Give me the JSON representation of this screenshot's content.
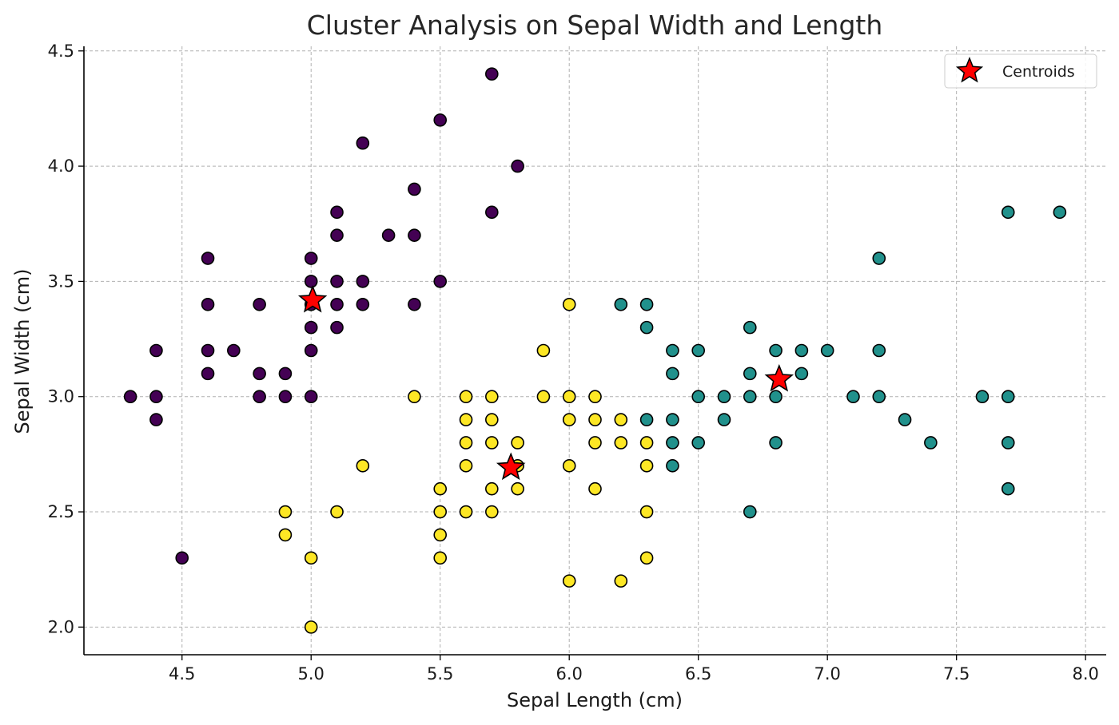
{
  "chart_data": {
    "type": "scatter",
    "title": "Cluster Analysis on Sepal Width and Length",
    "xlabel": "Sepal Length (cm)",
    "ylabel": "Sepal Width (cm)",
    "xlim": [
      4.12,
      8.08
    ],
    "ylim": [
      1.88,
      4.52
    ],
    "x_ticks": [
      "4.5",
      "5.0",
      "5.5",
      "6.0",
      "6.5",
      "7.0",
      "7.5",
      "8.0"
    ],
    "y_ticks": [
      "2.0",
      "2.5",
      "3.0",
      "3.5",
      "4.0",
      "4.5"
    ],
    "grid": true,
    "legend": {
      "entries": [
        "Centroids"
      ],
      "location": "top-right"
    },
    "colors": {
      "cluster_purple": "#440154",
      "cluster_teal": "#21918c",
      "cluster_yellow": "#fde725",
      "centroid": "#ff0000",
      "edge": "#000000"
    },
    "series": [
      {
        "color": "#440154",
        "points": [
          [
            4.3,
            3.0
          ],
          [
            4.4,
            3.2
          ],
          [
            4.4,
            3.0
          ],
          [
            4.4,
            2.9
          ],
          [
            4.5,
            2.3
          ],
          [
            4.6,
            3.6
          ],
          [
            4.6,
            3.4
          ],
          [
            4.6,
            3.2
          ],
          [
            4.6,
            3.1
          ],
          [
            4.7,
            3.2
          ],
          [
            4.8,
            3.4
          ],
          [
            4.8,
            3.1
          ],
          [
            4.8,
            3.0
          ],
          [
            4.9,
            3.1
          ],
          [
            4.9,
            3.0
          ],
          [
            5.0,
            3.6
          ],
          [
            5.0,
            3.5
          ],
          [
            5.0,
            3.4
          ],
          [
            5.0,
            3.3
          ],
          [
            5.0,
            3.2
          ],
          [
            5.0,
            3.0
          ],
          [
            5.1,
            3.8
          ],
          [
            5.1,
            3.7
          ],
          [
            5.1,
            3.5
          ],
          [
            5.1,
            3.4
          ],
          [
            5.1,
            3.3
          ],
          [
            5.2,
            4.1
          ],
          [
            5.2,
            3.5
          ],
          [
            5.2,
            3.4
          ],
          [
            5.3,
            3.7
          ],
          [
            5.4,
            3.9
          ],
          [
            5.4,
            3.7
          ],
          [
            5.4,
            3.4
          ],
          [
            5.5,
            4.2
          ],
          [
            5.5,
            3.5
          ],
          [
            5.7,
            4.4
          ],
          [
            5.7,
            3.8
          ],
          [
            5.8,
            4.0
          ]
        ]
      },
      {
        "color": "#fde725",
        "points": [
          [
            4.9,
            2.5
          ],
          [
            4.9,
            2.4
          ],
          [
            5.0,
            2.3
          ],
          [
            5.0,
            2.0
          ],
          [
            5.1,
            2.5
          ],
          [
            5.2,
            2.7
          ],
          [
            5.4,
            3.0
          ],
          [
            5.5,
            2.6
          ],
          [
            5.5,
            2.5
          ],
          [
            5.5,
            2.4
          ],
          [
            5.5,
            2.3
          ],
          [
            5.6,
            3.0
          ],
          [
            5.6,
            2.9
          ],
          [
            5.6,
            2.8
          ],
          [
            5.6,
            2.7
          ],
          [
            5.6,
            2.5
          ],
          [
            5.7,
            3.0
          ],
          [
            5.7,
            2.9
          ],
          [
            5.7,
            2.8
          ],
          [
            5.7,
            2.6
          ],
          [
            5.7,
            2.5
          ],
          [
            5.8,
            2.8
          ],
          [
            5.8,
            2.7
          ],
          [
            5.8,
            2.6
          ],
          [
            5.9,
            3.2
          ],
          [
            5.9,
            3.0
          ],
          [
            6.0,
            3.4
          ],
          [
            6.0,
            3.0
          ],
          [
            6.0,
            2.9
          ],
          [
            6.0,
            2.7
          ],
          [
            6.0,
            2.2
          ],
          [
            6.1,
            3.0
          ],
          [
            6.1,
            2.9
          ],
          [
            6.1,
            2.8
          ],
          [
            6.1,
            2.6
          ],
          [
            6.2,
            2.9
          ],
          [
            6.2,
            2.8
          ],
          [
            6.2,
            2.2
          ],
          [
            6.3,
            2.8
          ],
          [
            6.3,
            2.7
          ],
          [
            6.3,
            2.5
          ],
          [
            6.3,
            2.3
          ]
        ]
      },
      {
        "color": "#21918c",
        "points": [
          [
            6.2,
            3.4
          ],
          [
            6.3,
            3.4
          ],
          [
            6.3,
            3.3
          ],
          [
            6.3,
            2.9
          ],
          [
            6.4,
            3.2
          ],
          [
            6.4,
            3.1
          ],
          [
            6.4,
            2.9
          ],
          [
            6.4,
            2.8
          ],
          [
            6.4,
            2.7
          ],
          [
            6.5,
            3.2
          ],
          [
            6.5,
            3.0
          ],
          [
            6.5,
            2.8
          ],
          [
            6.6,
            3.0
          ],
          [
            6.6,
            2.9
          ],
          [
            6.7,
            3.3
          ],
          [
            6.7,
            3.1
          ],
          [
            6.7,
            3.0
          ],
          [
            6.7,
            2.5
          ],
          [
            6.8,
            3.2
          ],
          [
            6.8,
            3.0
          ],
          [
            6.8,
            2.8
          ],
          [
            6.9,
            3.2
          ],
          [
            6.9,
            3.1
          ],
          [
            7.0,
            3.2
          ],
          [
            7.1,
            3.0
          ],
          [
            7.2,
            3.6
          ],
          [
            7.2,
            3.2
          ],
          [
            7.2,
            3.0
          ],
          [
            7.3,
            2.9
          ],
          [
            7.4,
            2.8
          ],
          [
            7.6,
            3.0
          ],
          [
            7.7,
            3.8
          ],
          [
            7.7,
            3.0
          ],
          [
            7.7,
            2.8
          ],
          [
            7.7,
            2.6
          ],
          [
            7.9,
            3.8
          ]
        ]
      },
      {
        "name": "Centroids",
        "color": "#ff0000",
        "marker": "star",
        "points": [
          [
            5.006,
            3.418
          ],
          [
            5.774,
            2.692
          ],
          [
            6.813,
            3.075
          ]
        ]
      }
    ]
  }
}
